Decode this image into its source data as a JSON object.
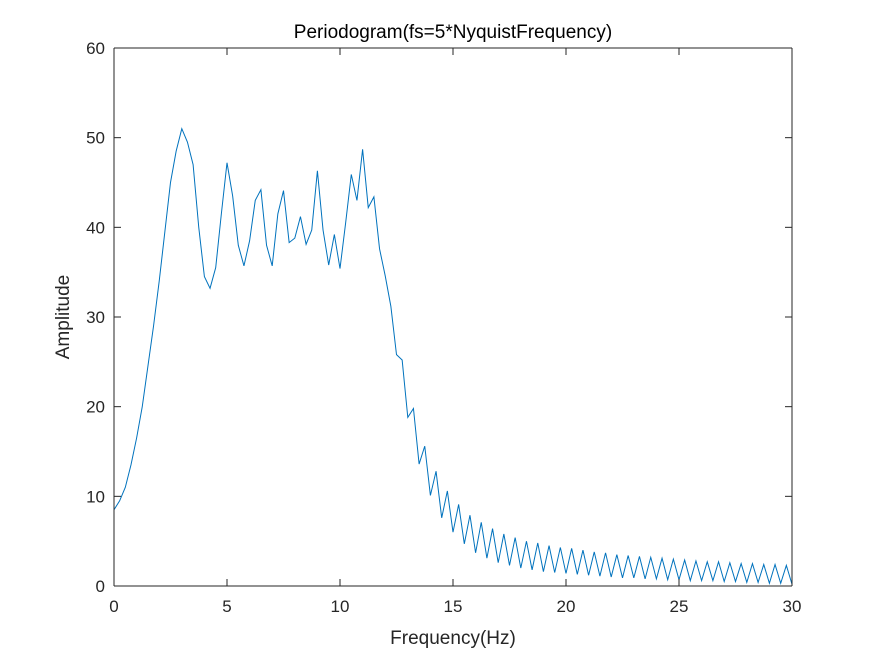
{
  "chart_data": {
    "type": "line",
    "title": "Periodogram(fs=5*NyquistFrequency)",
    "xlabel": "Frequency(Hz)",
    "ylabel": "Amplitude",
    "xlim": [
      0,
      30
    ],
    "ylim": [
      0,
      60
    ],
    "xticks": [
      0,
      5,
      10,
      15,
      20,
      25,
      30
    ],
    "yticks": [
      0,
      10,
      20,
      30,
      40,
      50,
      60
    ],
    "grid": false,
    "line_color": "#0072BD",
    "axis_color": "#262626",
    "series": [
      {
        "x": [
          0,
          0.25,
          0.5,
          0.75,
          1.0,
          1.25,
          1.5,
          1.75,
          2.0,
          2.25,
          2.5,
          2.75,
          3.0,
          3.25,
          3.5,
          3.75,
          4.0,
          4.25,
          4.5,
          4.75,
          5.0,
          5.25,
          5.5,
          5.75,
          6.0,
          6.25,
          6.5,
          6.75,
          7.0,
          7.25,
          7.5,
          7.75,
          8.0,
          8.25,
          8.5,
          8.75,
          9.0,
          9.25,
          9.5,
          9.75,
          10.0,
          10.25,
          10.5,
          10.75,
          11.0,
          11.25,
          11.5,
          11.75,
          12.0,
          12.25,
          12.5,
          12.75,
          13.0,
          13.25,
          13.5,
          13.75,
          14.0,
          14.25,
          14.5,
          14.75,
          15.0,
          15.25,
          15.5,
          15.75,
          16.0,
          16.25,
          16.5,
          16.75,
          17.0,
          17.25,
          17.5,
          17.75,
          18.0,
          18.25,
          18.5,
          18.75,
          19.0,
          19.25,
          19.5,
          19.75,
          20.0,
          20.25,
          20.5,
          20.75,
          21.0,
          21.25,
          21.5,
          21.75,
          22.0,
          22.25,
          22.5,
          22.75,
          23.0,
          23.25,
          23.5,
          23.75,
          24.0,
          24.25,
          24.5,
          24.75,
          25.0,
          25.25,
          25.5,
          25.75,
          26.0,
          26.25,
          26.5,
          26.75,
          27.0,
          27.25,
          27.5,
          27.75,
          28.0,
          28.25,
          28.5,
          28.75,
          29.0,
          29.25,
          29.5,
          29.75,
          30.0
        ],
        "y": [
          8.5,
          9.5,
          11.0,
          13.5,
          16.5,
          20.0,
          24.5,
          29.0,
          34.0,
          39.5,
          45.0,
          48.5,
          51.0,
          49.5,
          47.0,
          40.0,
          34.5,
          33.2,
          35.5,
          41.5,
          47.2,
          43.5,
          38.0,
          35.7,
          38.5,
          43.0,
          44.2,
          38.0,
          35.7,
          41.5,
          44.1,
          38.3,
          38.8,
          41.2,
          38.1,
          39.7,
          46.3,
          39.7,
          35.8,
          39.2,
          35.4,
          40.5,
          45.9,
          43.0,
          48.7,
          42.2,
          43.4,
          37.6,
          34.6,
          31.2,
          25.8,
          25.2,
          18.8,
          19.8,
          13.6,
          15.6,
          10.1,
          12.8,
          7.6,
          10.6,
          6.0,
          9.1,
          4.7,
          7.9,
          3.7,
          7.1,
          3.1,
          6.4,
          2.6,
          5.8,
          2.3,
          5.4,
          2.0,
          5.0,
          1.8,
          4.8,
          1.6,
          4.5,
          1.5,
          4.3,
          1.4,
          4.2,
          1.3,
          4.0,
          1.2,
          3.8,
          1.1,
          3.7,
          1.0,
          3.5,
          0.9,
          3.4,
          0.9,
          3.3,
          0.8,
          3.2,
          0.8,
          3.1,
          0.7,
          3.0,
          0.7,
          2.9,
          0.6,
          2.8,
          0.6,
          2.7,
          0.6,
          2.7,
          0.5,
          2.6,
          0.5,
          2.5,
          0.4,
          2.5,
          0.4,
          2.4,
          0.3,
          2.4,
          0.3,
          2.3,
          0.2
        ]
      }
    ]
  }
}
